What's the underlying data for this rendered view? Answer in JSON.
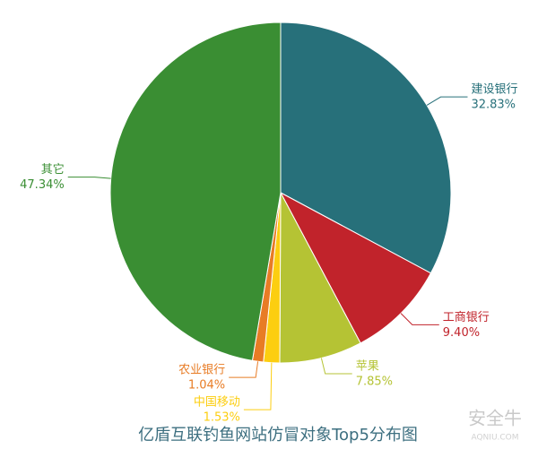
{
  "chart_data": {
    "type": "pie",
    "title": "亿盾互联钓鱼网站仿冒对象Top5分布图",
    "categories": [
      "建设银行",
      "工商银行",
      "苹果",
      "中国移动",
      "农业银行",
      "其它"
    ],
    "values": [
      32.83,
      9.4,
      7.85,
      1.53,
      1.04,
      47.34
    ],
    "value_labels": [
      "32.83%",
      "9.40%",
      "7.85%",
      "1.53%",
      "1.04%",
      "47.34%"
    ],
    "colors": [
      "#27707a",
      "#c1232b",
      "#b5c334",
      "#fcce10",
      "#e87c25",
      "#3a8e33"
    ]
  },
  "watermark": {
    "text": "安全牛",
    "subtext": "AQNIU.COM"
  }
}
